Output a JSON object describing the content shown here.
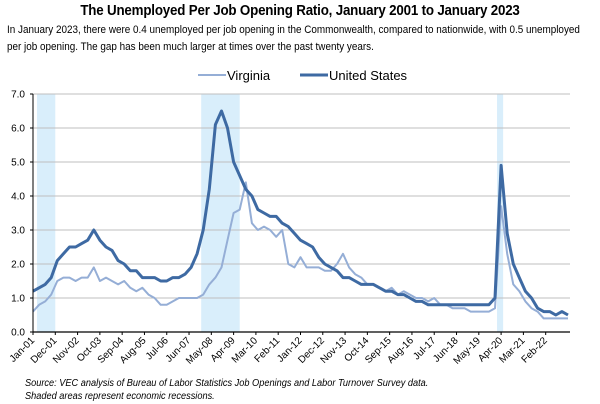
{
  "title": "The Unemployed Per Job Opening Ratio, January 2001 to January 2023",
  "subtitle": "In January 2023, there were 0.4 unemployed per job opening in the Commonwealth, compared to nationwide, with 0.5 unemployed per job opening. The gap has been much larger at times over the past twenty years.",
  "source_line1": "Source: VEC analysis of Bureau of Labor Statistics Job Openings and Labor Turnover Survey data.",
  "source_line2": "Shaded areas represent economic recessions.",
  "colors": {
    "virginia": "#95aed6",
    "united_states": "#3e6aa3",
    "recession": "#d9eefb",
    "grid": "#bfbfbf"
  },
  "chart_data": {
    "type": "line",
    "title": "The Unemployed Per Job Opening Ratio, January 2001 to January 2023",
    "xlabel": "",
    "ylabel": "",
    "ylim": [
      0,
      7
    ],
    "yticks": [
      "0.0",
      "1.0",
      "2.0",
      "3.0",
      "4.0",
      "5.0",
      "6.0",
      "7.0"
    ],
    "grid": true,
    "legend_position": "top-center",
    "x_start": "2001-01",
    "x_step_months": 3,
    "xtick_labels": [
      "Jan-01",
      "Dec-01",
      "Nov-02",
      "Oct-03",
      "Sep-04",
      "Aug-05",
      "Jul-06",
      "Jun-07",
      "May-08",
      "Apr-09",
      "Mar-10",
      "Feb-11",
      "Jan-12",
      "Dec-12",
      "Nov-13",
      "Oct-14",
      "Sep-15",
      "Aug-16",
      "Jul-17",
      "Jun-18",
      "May-19",
      "Apr-20",
      "Mar-21",
      "Feb-22"
    ],
    "recessions": [
      {
        "start": "2001-03",
        "end": "2001-11"
      },
      {
        "start": "2007-12",
        "end": "2009-06"
      },
      {
        "start": "2020-02",
        "end": "2020-04"
      }
    ],
    "series": [
      {
        "name": "Virginia",
        "values": [
          0.6,
          0.8,
          0.9,
          1.1,
          1.5,
          1.6,
          1.6,
          1.5,
          1.6,
          1.6,
          1.9,
          1.5,
          1.6,
          1.5,
          1.4,
          1.5,
          1.3,
          1.2,
          1.3,
          1.1,
          1.0,
          0.8,
          0.8,
          0.9,
          1.0,
          1.0,
          1.0,
          1.0,
          1.1,
          1.4,
          1.6,
          1.9,
          2.7,
          3.5,
          3.6,
          4.4,
          3.2,
          3.0,
          3.1,
          3.0,
          2.8,
          3.0,
          2.0,
          1.9,
          2.2,
          1.9,
          1.9,
          1.9,
          1.8,
          1.8,
          2.0,
          2.3,
          1.9,
          1.7,
          1.6,
          1.4,
          1.4,
          1.3,
          1.2,
          1.3,
          1.1,
          1.2,
          1.1,
          1.0,
          1.0,
          0.9,
          1.0,
          0.8,
          0.8,
          0.7,
          0.7,
          0.7,
          0.6,
          0.6,
          0.6,
          0.6,
          0.7,
          3.7,
          2.3,
          1.4,
          1.2,
          0.9,
          0.7,
          0.6,
          0.4,
          0.4,
          0.4,
          0.4,
          0.4
        ]
      },
      {
        "name": "United States",
        "values": [
          1.2,
          1.3,
          1.4,
          1.6,
          2.1,
          2.3,
          2.5,
          2.5,
          2.6,
          2.7,
          3.0,
          2.7,
          2.5,
          2.4,
          2.1,
          2.0,
          1.8,
          1.8,
          1.6,
          1.6,
          1.6,
          1.5,
          1.5,
          1.6,
          1.6,
          1.7,
          1.9,
          2.3,
          3.0,
          4.2,
          6.1,
          6.5,
          6.0,
          5.0,
          4.6,
          4.2,
          4.0,
          3.6,
          3.5,
          3.4,
          3.4,
          3.2,
          3.1,
          2.9,
          2.7,
          2.6,
          2.5,
          2.2,
          2.0,
          1.9,
          1.8,
          1.6,
          1.6,
          1.5,
          1.4,
          1.4,
          1.4,
          1.3,
          1.2,
          1.2,
          1.1,
          1.1,
          1.0,
          0.9,
          0.9,
          0.8,
          0.8,
          0.8,
          0.8,
          0.8,
          0.8,
          0.8,
          0.8,
          0.8,
          0.8,
          0.8,
          1.0,
          4.9,
          2.9,
          2.0,
          1.6,
          1.2,
          1.0,
          0.7,
          0.6,
          0.6,
          0.5,
          0.6,
          0.5
        ]
      }
    ]
  }
}
